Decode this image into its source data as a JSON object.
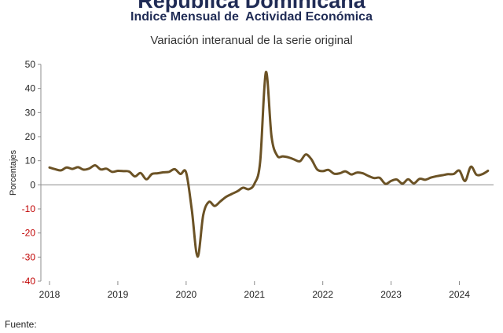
{
  "header": {
    "title": "República Dominicana",
    "subtitle": "Indice Mensual de  Actividad Económica",
    "description": "Variación interanual de la serie original"
  },
  "footer": {
    "source_label": "Fuente:"
  },
  "colors": {
    "line": "#6b5225",
    "negative_tick": "#c00000",
    "positive_tick": "#222222",
    "zero_line": "#8c8c8c"
  },
  "chart_data": {
    "type": "line",
    "title": "",
    "xlabel": "",
    "ylabel": "Porcentajes",
    "ylim": [
      -40,
      50
    ],
    "yticks": [
      50,
      40,
      30,
      20,
      10,
      0,
      -10,
      -20,
      -30,
      -40
    ],
    "xlim": [
      2018,
      2024.5
    ],
    "xticks": [
      "2018",
      "2019",
      "2020",
      "2021",
      "2022",
      "2023",
      "2024"
    ],
    "grid": false,
    "series": [
      {
        "x": [
          2018.0,
          2018.083,
          2018.167,
          2018.25,
          2018.333,
          2018.417,
          2018.5,
          2018.583,
          2018.667,
          2018.75,
          2018.833,
          2018.917,
          2019.0,
          2019.083,
          2019.167,
          2019.25,
          2019.333,
          2019.417,
          2019.5,
          2019.583,
          2019.667,
          2019.75,
          2019.833,
          2019.917,
          2020.0,
          2020.083,
          2020.167,
          2020.25,
          2020.333,
          2020.417,
          2020.5,
          2020.583,
          2020.667,
          2020.75,
          2020.833,
          2020.917,
          2021.0,
          2021.083,
          2021.167,
          2021.25,
          2021.333,
          2021.417,
          2021.5,
          2021.583,
          2021.667,
          2021.75,
          2021.833,
          2021.917,
          2022.0,
          2022.083,
          2022.167,
          2022.25,
          2022.333,
          2022.417,
          2022.5,
          2022.583,
          2022.667,
          2022.75,
          2022.833,
          2022.917,
          2023.0,
          2023.083,
          2023.167,
          2023.25,
          2023.333,
          2023.417,
          2023.5,
          2023.583,
          2023.667,
          2023.75,
          2023.833,
          2023.917,
          2024.0,
          2024.083,
          2024.167,
          2024.25,
          2024.333,
          2024.417
        ],
        "values": [
          7.2,
          6.5,
          6.0,
          7.2,
          6.6,
          7.3,
          6.3,
          6.8,
          8.1,
          6.4,
          6.7,
          5.4,
          5.8,
          5.7,
          5.5,
          3.5,
          4.9,
          2.3,
          4.5,
          4.8,
          5.2,
          5.4,
          6.5,
          4.5,
          5.1,
          -10.5,
          -29.8,
          -12.5,
          -7.1,
          -8.8,
          -6.9,
          -5.0,
          -3.8,
          -2.7,
          -1.2,
          -1.8,
          0.5,
          9.5,
          46.8,
          20.0,
          12.1,
          11.8,
          11.4,
          10.5,
          9.8,
          12.6,
          10.6,
          6.4,
          5.7,
          6.2,
          4.6,
          4.8,
          5.6,
          4.3,
          5.1,
          4.8,
          3.7,
          2.8,
          2.9,
          0.4,
          1.6,
          2.2,
          0.5,
          2.3,
          0.6,
          2.5,
          2.1,
          3.0,
          3.6,
          4.0,
          4.4,
          4.5,
          5.9,
          1.6,
          7.5,
          4.2,
          4.4,
          5.8
        ]
      }
    ]
  }
}
